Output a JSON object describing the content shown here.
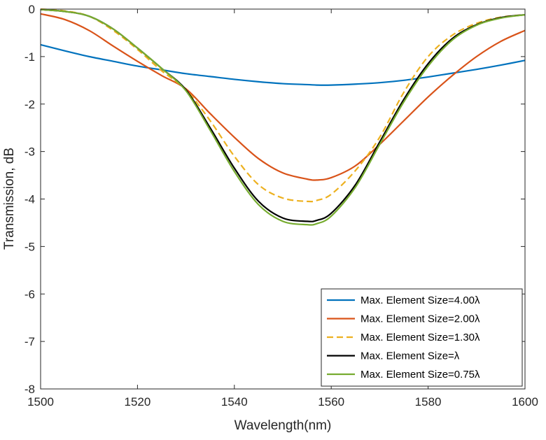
{
  "chart_data": {
    "type": "line",
    "title": "",
    "xlabel": "Wavelength(nm)",
    "ylabel": "Transmission, dB",
    "xlim": [
      1500,
      1600
    ],
    "ylim": [
      -8,
      0
    ],
    "xticks": [
      1500,
      1520,
      1540,
      1560,
      1580,
      1600
    ],
    "yticks": [
      -8,
      -7,
      -6,
      -5,
      -4,
      -3,
      -2,
      -1,
      0
    ],
    "grid": false,
    "legend_position": "bottom-right",
    "x": [
      1500,
      1505,
      1510,
      1515,
      1520,
      1525,
      1530,
      1535,
      1540,
      1545,
      1550,
      1555,
      1557,
      1560,
      1565,
      1570,
      1575,
      1580,
      1585,
      1590,
      1595,
      1600
    ],
    "series": [
      {
        "name": "Max. Element Size=4.00λ",
        "color": "#0072BD",
        "dash": "solid",
        "values": [
          -0.75,
          -0.88,
          -1.0,
          -1.1,
          -1.2,
          -1.28,
          -1.36,
          -1.42,
          -1.48,
          -1.53,
          -1.57,
          -1.59,
          -1.6,
          -1.6,
          -1.58,
          -1.55,
          -1.5,
          -1.43,
          -1.35,
          -1.27,
          -1.18,
          -1.08
        ]
      },
      {
        "name": "Max. Element Size=2.00λ",
        "color": "#D95319",
        "dash": "solid",
        "values": [
          -0.1,
          -0.22,
          -0.45,
          -0.78,
          -1.1,
          -1.4,
          -1.68,
          -2.2,
          -2.7,
          -3.15,
          -3.45,
          -3.58,
          -3.6,
          -3.55,
          -3.3,
          -2.85,
          -2.35,
          -1.85,
          -1.4,
          -1.0,
          -0.68,
          -0.45
        ]
      },
      {
        "name": "Max. Element Size=1.30λ",
        "color": "#EDB120",
        "dash": "dashed",
        "values": [
          0,
          -0.04,
          -0.15,
          -0.45,
          -0.85,
          -1.3,
          -1.7,
          -2.35,
          -3.1,
          -3.7,
          -3.98,
          -4.05,
          -4.03,
          -3.9,
          -3.4,
          -2.7,
          -1.75,
          -1.0,
          -0.55,
          -0.3,
          -0.17,
          -0.12
        ]
      },
      {
        "name": "Max. Element Size=λ",
        "color": "#000000",
        "dash": "solid",
        "values": [
          -0.01,
          -0.05,
          -0.15,
          -0.42,
          -0.82,
          -1.25,
          -1.7,
          -2.5,
          -3.35,
          -4.05,
          -4.4,
          -4.47,
          -4.45,
          -4.3,
          -3.7,
          -2.8,
          -1.9,
          -1.15,
          -0.62,
          -0.33,
          -0.18,
          -0.12
        ]
      },
      {
        "name": "Max. Element Size=0.75λ",
        "color": "#77AC30",
        "dash": "solid",
        "values": [
          -0.01,
          -0.05,
          -0.15,
          -0.42,
          -0.82,
          -1.25,
          -1.72,
          -2.55,
          -3.42,
          -4.12,
          -4.47,
          -4.54,
          -4.52,
          -4.36,
          -3.75,
          -2.85,
          -1.95,
          -1.2,
          -0.65,
          -0.34,
          -0.19,
          -0.12
        ]
      }
    ]
  }
}
